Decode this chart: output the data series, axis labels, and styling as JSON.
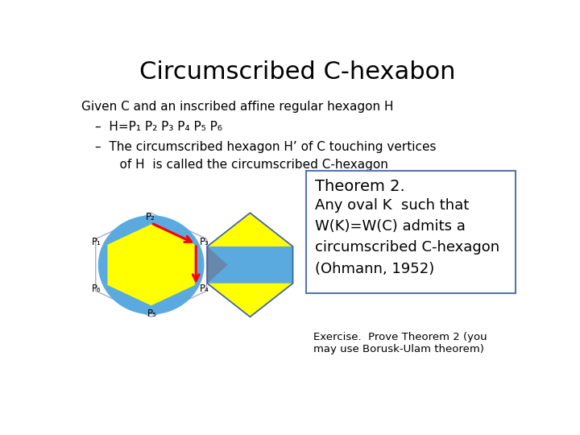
{
  "title": "Circumscribed C-hexabon",
  "title_fontsize": 22,
  "line1": "Given C and an inscribed affine regular hexagon H",
  "line2": "–  H=P₁ P₂ P₃ P₄ P₅ P₆",
  "line3": "–  The circumscribed hexagon H’ of C touching vertices",
  "line3b": "    of H  is called the circumscribed C-hexagon",
  "theorem_title": "Theorem 2.",
  "theorem_body": "Any oval K  such that\nW(K)=W(C) admits a\ncircumscribed C-hexagon\n(Ohmann, 1952)",
  "exercise": "Exercise.  Prove Theorem 2 (you\nmay use Borusk-Ulam theorem)",
  "color_yellow": "#FFFF00",
  "color_blue": "#5AAAE0",
  "color_blue_tri": "#5599DD",
  "color_blue_gray": "#7799BB",
  "color_red": "#EE0000",
  "bg_color": "#FFFFFF"
}
